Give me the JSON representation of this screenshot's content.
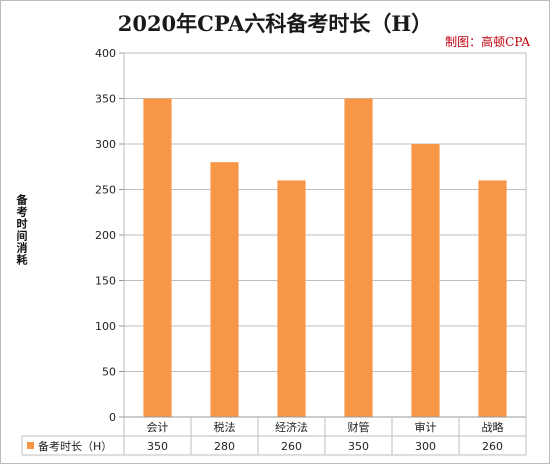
{
  "chart_data": {
    "type": "bar",
    "title": "2020年CPA六科备考时长（H）",
    "credit": "制图：高顿CPA",
    "ylabel": "备考时间消耗",
    "categories": [
      "会计",
      "税法",
      "经济法",
      "财管",
      "审计",
      "战略"
    ],
    "series": [
      {
        "name": "备考时长（H）",
        "values": [
          350,
          280,
          260,
          350,
          300,
          260
        ],
        "color": "#f79646"
      }
    ],
    "ylim": [
      0,
      400
    ],
    "yticks": [
      0,
      50,
      100,
      150,
      200,
      250,
      300,
      350,
      400
    ],
    "grid": true,
    "legend": "data-table",
    "value_labels": [
      "350",
      "280",
      "260",
      "350",
      "300",
      "260"
    ]
  }
}
